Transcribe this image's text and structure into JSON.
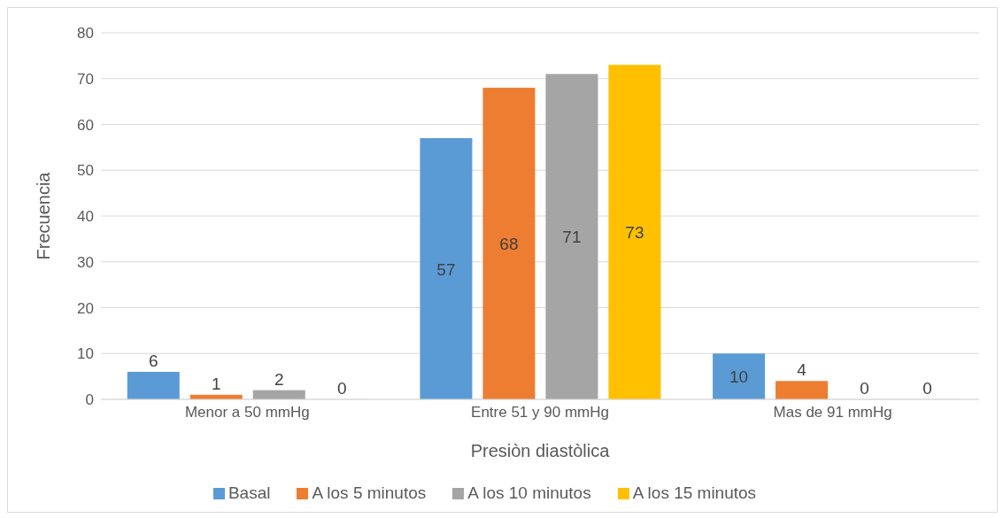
{
  "chart_data": {
    "type": "bar",
    "xlabel": "Presiòn diastòlica",
    "ylabel": "Frecuencia",
    "categories": [
      "Menor a 50 mmHg",
      "Entre 51 y 90 mmHg",
      "Mas de 91 mmHg"
    ],
    "series": [
      {
        "name": "Basal",
        "color": "#5b9bd5",
        "values": [
          6,
          57,
          10
        ]
      },
      {
        "name": "A los 5 minutos",
        "color": "#ed7d31",
        "values": [
          1,
          68,
          4
        ]
      },
      {
        "name": "A los 10 minutos",
        "color": "#a5a5a5",
        "values": [
          2,
          71,
          0
        ]
      },
      {
        "name": "A los 15 minutos",
        "color": "#ffc000",
        "values": [
          0,
          73,
          0
        ]
      }
    ],
    "ylim": [
      0,
      80
    ],
    "yticks": [
      0,
      10,
      20,
      30,
      40,
      50,
      60,
      70,
      80
    ],
    "grid": "y",
    "legend": "bottom",
    "data_labels": true
  }
}
